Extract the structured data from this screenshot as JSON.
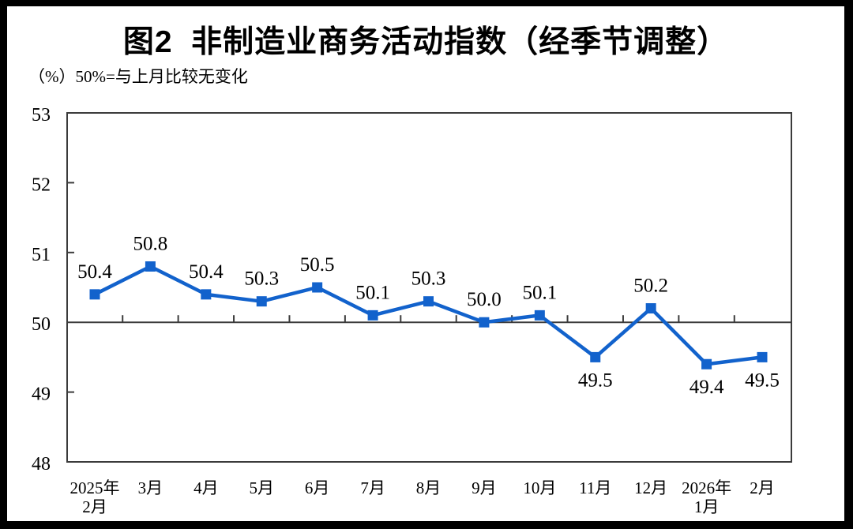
{
  "title": "图2  非制造业商务活动指数（经季节调整）",
  "subtitle": "（%）50%=与上月比较无变化",
  "colors": {
    "series": "#1262cc",
    "axis": "#3b3b3b",
    "text": "#000000",
    "background": "#ffffff",
    "frame": "#000000"
  },
  "chart_data": {
    "type": "line",
    "title": "图2 非制造业商务活动指数（经季节调整）",
    "ylabel": "（%）50%=与上月比较无变化",
    "ylim": [
      48,
      53
    ],
    "yticks": [
      48,
      49,
      50,
      51,
      52,
      53
    ],
    "reference_line": 50,
    "grid": false,
    "legend": "none",
    "marker": "square",
    "categories": [
      [
        "2025年",
        "2月"
      ],
      [
        "3月"
      ],
      [
        "4月"
      ],
      [
        "5月"
      ],
      [
        "6月"
      ],
      [
        "7月"
      ],
      [
        "8月"
      ],
      [
        "9月"
      ],
      [
        "10月"
      ],
      [
        "11月"
      ],
      [
        "12月"
      ],
      [
        "2026年",
        "1月"
      ],
      [
        "2月"
      ]
    ],
    "values": [
      50.4,
      50.8,
      50.4,
      50.3,
      50.5,
      50.1,
      50.3,
      50.0,
      50.1,
      49.5,
      50.2,
      49.4,
      49.5
    ],
    "labels": [
      "50.4",
      "50.8",
      "50.4",
      "50.3",
      "50.5",
      "50.1",
      "50.3",
      "50.0",
      "50.1",
      "49.5",
      "50.2",
      "49.4",
      "49.5"
    ],
    "label_positions": [
      "above",
      "above",
      "above",
      "above",
      "above",
      "above",
      "above",
      "above",
      "above",
      "below",
      "above",
      "below",
      "below"
    ]
  }
}
